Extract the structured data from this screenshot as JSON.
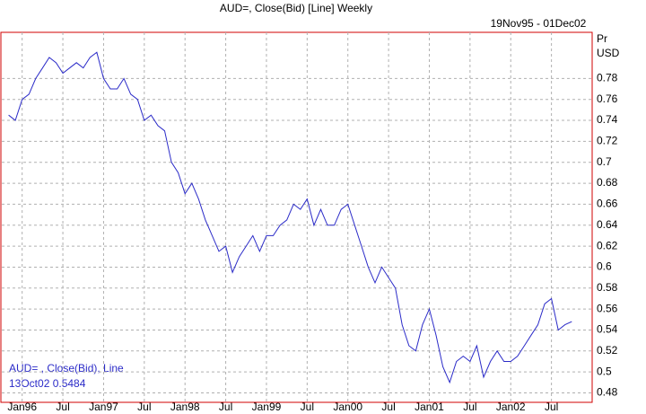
{
  "chart_data": {
    "type": "line",
    "title": "AUD=, Close(Bid) [Line] Weekly",
    "subtitle": "19Nov95 - 01Dec02",
    "y_label": "Pr",
    "y_unit": "USD",
    "annotations": [
      "AUD= , Close(Bid), Line",
      "13Oct02 0.5484"
    ],
    "x": [
      "1995-11",
      "1995-12",
      "1996-01",
      "1996-02",
      "1996-03",
      "1996-04",
      "1996-05",
      "1996-06",
      "1996-07",
      "1996-08",
      "1996-09",
      "1996-10",
      "1996-11",
      "1996-12",
      "1997-01",
      "1997-02",
      "1997-03",
      "1997-04",
      "1997-05",
      "1997-06",
      "1997-07",
      "1997-08",
      "1997-09",
      "1997-10",
      "1997-11",
      "1997-12",
      "1998-01",
      "1998-02",
      "1998-03",
      "1998-04",
      "1998-05",
      "1998-06",
      "1998-07",
      "1998-08",
      "1998-09",
      "1998-10",
      "1998-11",
      "1998-12",
      "1999-01",
      "1999-02",
      "1999-03",
      "1999-04",
      "1999-05",
      "1999-06",
      "1999-07",
      "1999-08",
      "1999-09",
      "1999-10",
      "1999-11",
      "1999-12",
      "2000-01",
      "2000-02",
      "2000-03",
      "2000-04",
      "2000-05",
      "2000-06",
      "2000-07",
      "2000-08",
      "2000-09",
      "2000-10",
      "2000-11",
      "2000-12",
      "2001-01",
      "2001-02",
      "2001-03",
      "2001-04",
      "2001-05",
      "2001-06",
      "2001-07",
      "2001-08",
      "2001-09",
      "2001-10",
      "2001-11",
      "2001-12",
      "2002-01",
      "2002-02",
      "2002-03",
      "2002-04",
      "2002-05",
      "2002-06",
      "2002-07",
      "2002-08",
      "2002-09",
      "2002-10"
    ],
    "series": [
      {
        "name": "AUD=",
        "color": "#2b2bc8",
        "values": [
          0.745,
          0.74,
          0.76,
          0.765,
          0.78,
          0.79,
          0.8,
          0.795,
          0.785,
          0.79,
          0.795,
          0.79,
          0.8,
          0.805,
          0.78,
          0.77,
          0.77,
          0.78,
          0.765,
          0.76,
          0.74,
          0.745,
          0.735,
          0.73,
          0.7,
          0.69,
          0.67,
          0.68,
          0.665,
          0.645,
          0.63,
          0.615,
          0.62,
          0.595,
          0.61,
          0.62,
          0.63,
          0.615,
          0.63,
          0.63,
          0.64,
          0.645,
          0.66,
          0.655,
          0.665,
          0.64,
          0.655,
          0.64,
          0.64,
          0.655,
          0.66,
          0.64,
          0.62,
          0.6,
          0.585,
          0.6,
          0.59,
          0.58,
          0.545,
          0.525,
          0.52,
          0.545,
          0.56,
          0.535,
          0.505,
          0.49,
          0.51,
          0.515,
          0.51,
          0.525,
          0.495,
          0.51,
          0.52,
          0.51,
          0.51,
          0.515,
          0.525,
          0.535,
          0.545,
          0.565,
          0.57,
          0.54,
          0.545,
          0.548
        ]
      }
    ],
    "xlim": [
      "1995-10",
      "2003-01"
    ],
    "xticks": [
      {
        "value": "1996-01",
        "label": "Jan96"
      },
      {
        "value": "1996-07",
        "label": "Jul"
      },
      {
        "value": "1997-01",
        "label": "Jan97"
      },
      {
        "value": "1997-07",
        "label": "Jul"
      },
      {
        "value": "1998-01",
        "label": "Jan98"
      },
      {
        "value": "1998-07",
        "label": "Jul"
      },
      {
        "value": "1999-01",
        "label": "Jan99"
      },
      {
        "value": "1999-07",
        "label": "Jul"
      },
      {
        "value": "2000-01",
        "label": "Jan00"
      },
      {
        "value": "2000-07",
        "label": "Jul"
      },
      {
        "value": "2001-01",
        "label": "Jan01"
      },
      {
        "value": "2001-07",
        "label": "Jul"
      },
      {
        "value": "2002-01",
        "label": "Jan02"
      },
      {
        "value": "2002-07",
        "label": "Jul"
      }
    ],
    "ylim": [
      0.471,
      0.824
    ],
    "yticks": [
      0.48,
      0.5,
      0.52,
      0.54,
      0.56,
      0.58,
      0.6,
      0.62,
      0.64,
      0.66,
      0.68,
      0.7,
      0.72,
      0.74,
      0.76,
      0.78
    ],
    "grid": true
  }
}
